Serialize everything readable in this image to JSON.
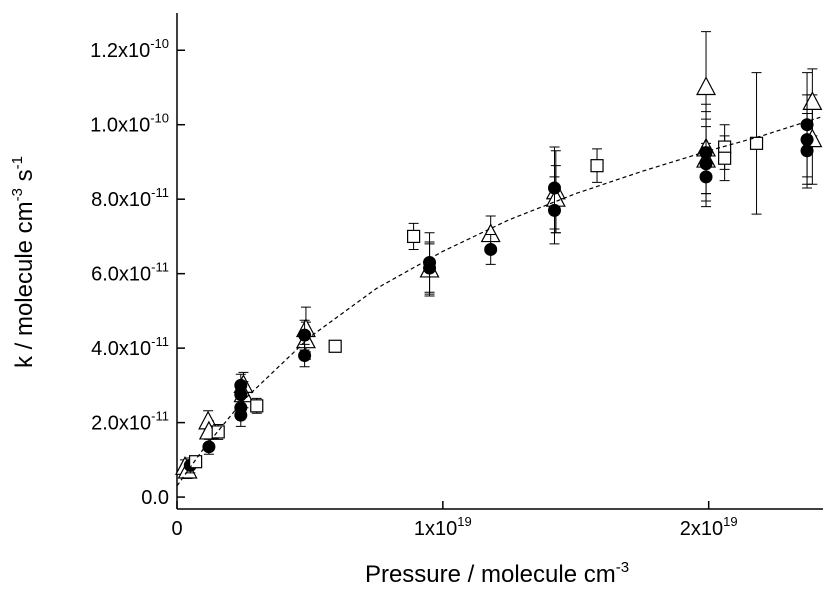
{
  "chart_data": {
    "type": "scatter",
    "x_label": [
      "Pressure / molecule cm",
      "-3"
    ],
    "y_label": [
      "k / molecule cm",
      "-3",
      " s",
      "-1"
    ],
    "xlim": [
      0,
      2.43e+19
    ],
    "ylim": [
      -3.2e-12,
      1.3e-10
    ],
    "xticks": [
      0,
      {
        "value": 1e+19,
        "label": "1x1019"
      },
      {
        "value": 2e+19,
        "label": "2x1019"
      }
    ],
    "yticks": [
      {
        "value": 0,
        "label": "0.0"
      },
      {
        "value": 2e-11,
        "label": "2.0x10-11"
      },
      {
        "value": 4e-11,
        "label": "4.0x10-11"
      },
      {
        "value": 6e-11,
        "label": "6.0x10-11"
      },
      {
        "value": 8e-11,
        "label": "8.0x10-11"
      },
      {
        "value": 1e-10,
        "label": "1.0x10-10"
      },
      {
        "value": 1.2e-10,
        "label": "1.2x10-10"
      }
    ],
    "series": [
      {
        "marker": "triangle",
        "color": "#000000",
        "x": [
          3e+17,
          4e+17,
          1.17e+18,
          1.2e+18,
          2.5e+18,
          2.5e+18,
          4.85e+18,
          4.85e+18,
          9.5e+18,
          1.18e+19,
          1.425e+19,
          1.425e+19,
          1.99e+19,
          1.99e+19,
          1.99e+19,
          2.39e+19,
          2.39e+19
        ],
        "values": [
          8e-12,
          7e-12,
          2.02e-11,
          1.75e-11,
          3e-11,
          2.75e-11,
          4.5e-11,
          4.2e-11,
          6.1e-11,
          7.05e-11,
          8.2e-11,
          8e-11,
          1.1e-10,
          9.35e-11,
          9.05e-11,
          1.06e-10,
          9.6e-11
        ],
        "errors": [
          2e-12,
          2e-12,
          3e-12,
          3e-12,
          3.5e-12,
          3.5e-12,
          6e-12,
          5e-12,
          7e-12,
          5e-12,
          1.1e-11,
          9e-12,
          1.5e-11,
          1.2e-11,
          1.1e-11,
          9e-12,
          1.2e-11
        ]
      },
      {
        "marker": "circle",
        "color": "#000000",
        "x": [
          5e+17,
          1.2e+18,
          2.4e+18,
          2.4e+18,
          2.4e+18,
          2.4e+18,
          4.8e+18,
          4.8e+18,
          9.5e+18,
          9.5e+18,
          1.18e+19,
          1.42e+19,
          1.42e+19,
          1.99e+19,
          1.99e+19,
          1.99e+19,
          2.37e+19,
          2.37e+19,
          2.37e+19
        ],
        "values": [
          8.5e-12,
          1.35e-11,
          3e-11,
          2.75e-11,
          2.4e-11,
          2.2e-11,
          4.35e-11,
          3.8e-11,
          6.3e-11,
          6.15e-11,
          6.65e-11,
          8.3e-11,
          7.7e-11,
          9.25e-11,
          8.95e-11,
          8.6e-11,
          1e-10,
          9.6e-11,
          9.3e-11
        ],
        "errors": [
          2e-12,
          2e-12,
          3e-12,
          3e-12,
          3e-12,
          3e-12,
          4e-12,
          3e-12,
          8e-12,
          7e-12,
          4e-12,
          1.1e-11,
          9e-12,
          1.1e-11,
          1e-11,
          8e-12,
          1.4e-11,
          1.2e-11,
          1e-11
        ]
      },
      {
        "marker": "square",
        "color": "#000000",
        "x": [
          7e+17,
          1.55e+18,
          3e+18,
          5.95e+18,
          8.9e+18,
          1.58e+19,
          2.06e+19,
          2.06e+19,
          2.18e+19
        ],
        "values": [
          9.5e-12,
          1.75e-11,
          2.45e-11,
          4.05e-11,
          7e-11,
          8.9e-11,
          9.4e-11,
          9.1e-11,
          9.5e-11
        ],
        "errors": [
          1.5e-12,
          2e-12,
          2e-12,
          1e-12,
          3.5e-12,
          4.5e-12,
          6e-12,
          6e-12,
          1.9e-11
        ]
      },
      {
        "line": "dashed",
        "color": "#000000",
        "x": [
          0,
          1e+18,
          2.5e+18,
          5e+18,
          7.5e+18,
          1e+19,
          1.25e+19,
          1.5e+19,
          1.75e+19,
          2e+19,
          2.2e+19,
          2.42e+19
        ],
        "values": [
          3e-12,
          1.3e-11,
          2.6e-11,
          4.3e-11,
          5.6e-11,
          6.6e-11,
          7.45e-11,
          8.15e-11,
          8.75e-11,
          9.3e-11,
          9.7e-11,
          1.02e-10
        ]
      }
    ]
  }
}
